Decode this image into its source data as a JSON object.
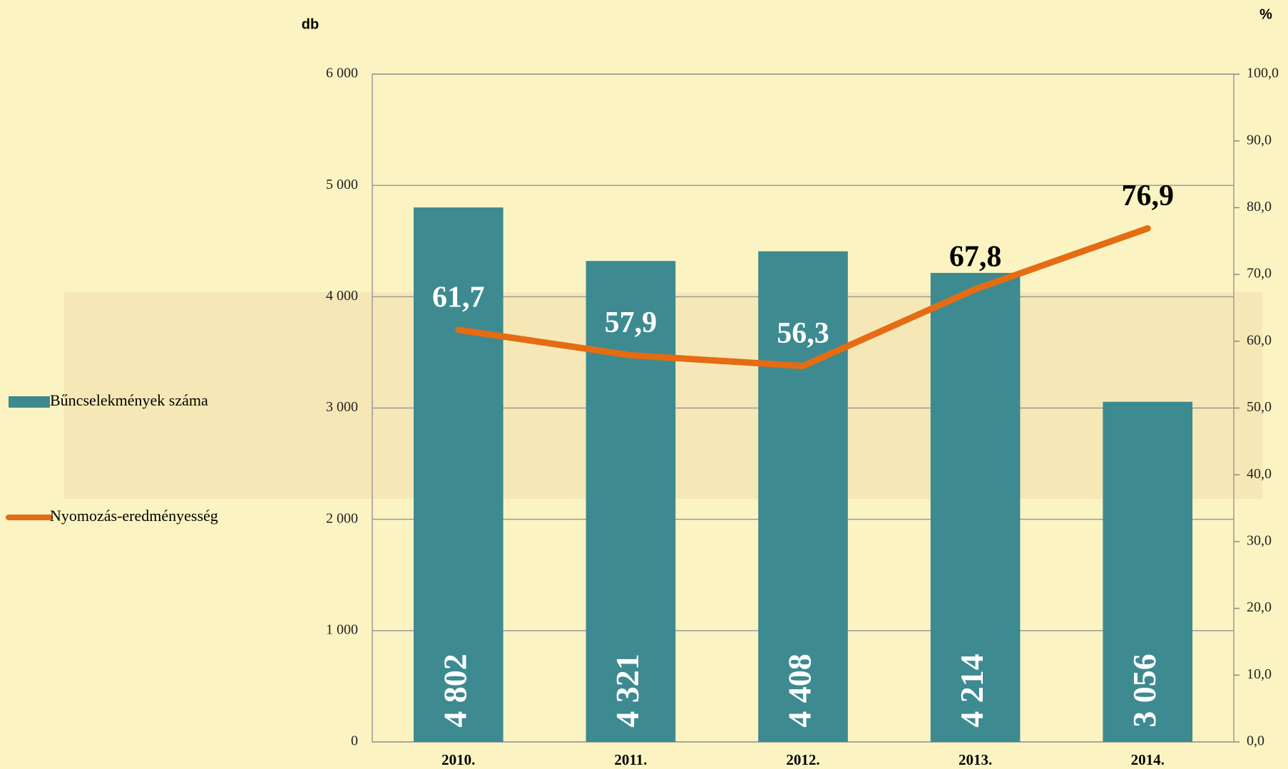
{
  "chart_data": {
    "type": "bar-line",
    "y_label": "db",
    "y2_label": "%",
    "categories": [
      "2010.",
      "2011.",
      "2012.",
      "2013.",
      "2014."
    ],
    "series": [
      {
        "name": "Bűncselekmények száma",
        "type": "bar",
        "color": "#3d8a91",
        "values": [
          4802,
          4321,
          4408,
          4214,
          3056
        ],
        "value_labels": [
          "4 802",
          "4 321",
          "4 408",
          "4 214",
          "3 056"
        ]
      },
      {
        "name": "Nyomozás-eredményesség",
        "type": "line",
        "axis": "y2",
        "color": "#e56c12",
        "values": [
          61.7,
          57.9,
          56.3,
          67.8,
          76.9
        ],
        "value_labels": [
          "61,7",
          "57,9",
          "56,3",
          "67,8",
          "76,9"
        ]
      }
    ],
    "ylim": [
      0,
      6000
    ],
    "yticks": [
      0,
      {
        "value": 1000,
        "label": "1 000"
      },
      {
        "value": 2000,
        "label": "2 000"
      },
      {
        "value": 3000,
        "label": "3 000"
      },
      {
        "value": 4000,
        "label": "4 000"
      },
      {
        "value": 5000,
        "label": "5 000"
      },
      {
        "value": 6000,
        "label": "6 000"
      }
    ],
    "y2lim": [
      0,
      100
    ],
    "y2ticks": [
      {
        "value": 0,
        "label": "0,0"
      },
      {
        "value": 10,
        "label": "10,0"
      },
      {
        "value": 20,
        "label": "20,0"
      },
      {
        "value": 30,
        "label": "30,0"
      },
      {
        "value": 40,
        "label": "40,0"
      },
      {
        "value": 50,
        "label": "50,0"
      },
      {
        "value": 60,
        "label": "60,0"
      },
      {
        "value": 70,
        "label": "70,0"
      },
      {
        "value": 80,
        "label": "80,0"
      },
      {
        "value": 90,
        "label": "90,0"
      },
      {
        "value": 100,
        "label": "100,0"
      }
    ],
    "grid": true,
    "legend": "left"
  }
}
